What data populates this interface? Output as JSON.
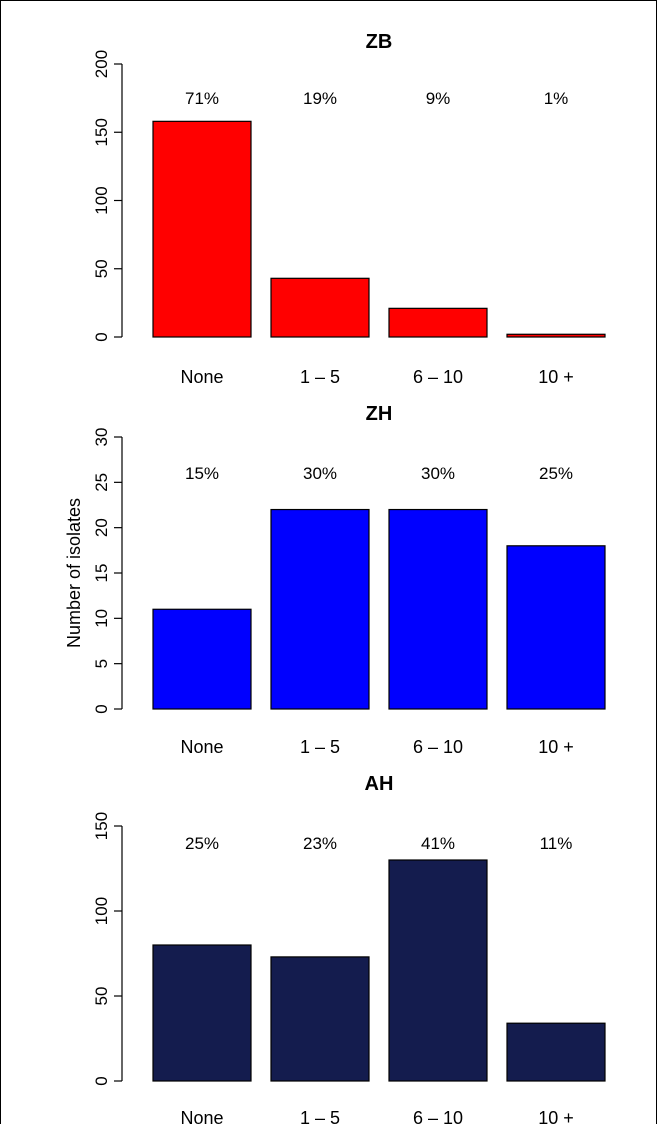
{
  "ylabel": "Number of isolates",
  "chart_data": [
    {
      "type": "bar",
      "title": "ZB",
      "categories": [
        "None",
        "1 – 5",
        "6 – 10",
        "10 +"
      ],
      "values": [
        158,
        43,
        21,
        2
      ],
      "percent_labels": [
        "71%",
        "19%",
        "9%",
        "1%"
      ],
      "ylim": [
        0,
        200
      ],
      "yticks": [
        0,
        50,
        100,
        150,
        200
      ],
      "color": "#ff0000",
      "grid": false
    },
    {
      "type": "bar",
      "title": "ZH",
      "categories": [
        "None",
        "1 – 5",
        "6 – 10",
        "10 +"
      ],
      "values": [
        11,
        22,
        22,
        18
      ],
      "percent_labels": [
        "15%",
        "30%",
        "30%",
        "25%"
      ],
      "ylim": [
        0,
        30
      ],
      "yticks": [
        0,
        5,
        10,
        15,
        20,
        25,
        30
      ],
      "color": "#0000ff",
      "grid": false
    },
    {
      "type": "bar",
      "title": "AH",
      "categories": [
        "None",
        "1 – 5",
        "6 – 10",
        "10 +"
      ],
      "values": [
        80,
        73,
        130,
        34
      ],
      "percent_labels": [
        "25%",
        "23%",
        "41%",
        "11%"
      ],
      "ylim": [
        0,
        150
      ],
      "yticks": [
        0,
        50,
        100,
        150
      ],
      "color": "#141c4e",
      "grid": false
    }
  ]
}
